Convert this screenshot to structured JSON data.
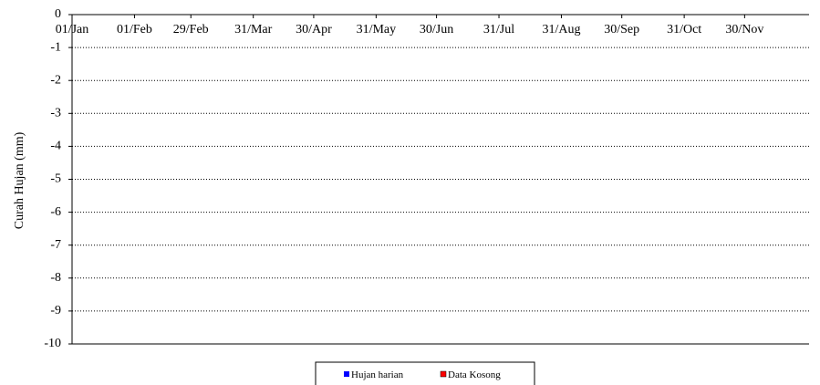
{
  "chart_data": {
    "type": "bar",
    "title": "",
    "xlabel": "",
    "ylabel": "Curah Hujan (mm)",
    "ylim": [
      -10,
      0
    ],
    "y_ticks": [
      "0",
      "-1",
      "-2",
      "-3",
      "-4",
      "-5",
      "-6",
      "-7",
      "-8",
      "-9",
      "-10"
    ],
    "x_ticks": [
      "01/Jan",
      "01/Feb",
      "29/Feb",
      "31/Mar",
      "30/Apr",
      "31/May",
      "30/Jun",
      "31/Jul",
      "31/Aug",
      "30/Sep",
      "31/Oct",
      "30/Nov"
    ],
    "x_tick_day_of_year": [
      1,
      32,
      60,
      91,
      121,
      152,
      182,
      213,
      244,
      274,
      305,
      335
    ],
    "x_days_total": 366,
    "grid": "horizontal-dotted",
    "legend_position": "bottom",
    "series": [
      {
        "name": "Hujan harian",
        "color": "#0000ff",
        "values": []
      },
      {
        "name": "Data Kosong",
        "color": "#ff0000",
        "values": []
      }
    ]
  }
}
